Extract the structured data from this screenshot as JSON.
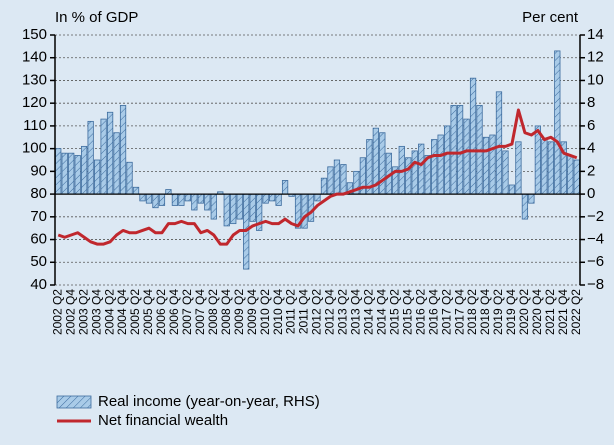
{
  "chart_data": {
    "type": "combo",
    "ylabel": "In % of GDP",
    "y2label": "Per cent",
    "categories": [
      "2002 Q2",
      null,
      "2002 Q4",
      null,
      "2003 Q2",
      null,
      "2003 Q4",
      null,
      "2004 Q2",
      null,
      "2004 Q4",
      null,
      "2005 Q2",
      null,
      "2005 Q4",
      null,
      "2006 Q2",
      null,
      "2006 Q4",
      null,
      "2007 Q2",
      null,
      "2007 Q4",
      null,
      "2008 Q2",
      null,
      "2008 Q4",
      null,
      "2009 Q2",
      null,
      "2009 Q4",
      null,
      "2010 Q2",
      null,
      "2010 Q4",
      null,
      "2011 Q2",
      null,
      "2011 Q4",
      null,
      "2012 Q2",
      null,
      "2012 Q4",
      null,
      "2013 Q2",
      null,
      "2013 Q4",
      null,
      "2014 Q2",
      null,
      "2014 Q4",
      null,
      "2015 Q2",
      null,
      "2015 Q4",
      null,
      "2016 Q2",
      null,
      "2016 Q4",
      null,
      "2017 Q2",
      null,
      "2017 Q4",
      null,
      "2018 Q2",
      null,
      "2018 Q4",
      null,
      "2019 Q2",
      null,
      "2019 Q4",
      null,
      "2020 Q2",
      null,
      "2020 Q4",
      null,
      "2021 Q2",
      null,
      "2021 Q4",
      null,
      "2022 Q2"
    ],
    "series": [
      {
        "name": "Real income (year-on-year, RHS)",
        "type": "bar",
        "axis": "y2",
        "color": "#a9cbe8",
        "edge": "#3d6c9e",
        "values": [
          4,
          3.6,
          3.6,
          3.4,
          4.2,
          6.4,
          3,
          6.6,
          7.2,
          5.4,
          7.8,
          2.8,
          0.6,
          -0.6,
          -0.8,
          -1.2,
          -1,
          0.4,
          -1,
          -1,
          -0.6,
          -1.4,
          -0.8,
          -1.4,
          -2.2,
          0.2,
          -2.8,
          -2.6,
          -2.2,
          -6.6,
          -2.4,
          -3.2,
          -0.8,
          -0.6,
          -1,
          1.2,
          -0.2,
          -3,
          -3,
          -2.4,
          -0.6,
          1.4,
          2.4,
          3,
          2.6,
          1,
          2,
          3.2,
          4.8,
          5.8,
          5.4,
          3.6,
          2.4,
          4.2,
          3.2,
          3.8,
          4.4,
          3.4,
          4.8,
          5.2,
          6,
          7.8,
          7.8,
          6.6,
          10.2,
          7.8,
          5,
          5.2,
          9,
          3.8,
          0.8,
          4.6,
          -2.2,
          -0.8,
          6,
          4.8,
          4.6,
          12.6,
          4.6,
          3.4,
          3
        ]
      },
      {
        "name": "Net financial wealth",
        "type": "line",
        "color": "#c0272d",
        "values": [
          62,
          61,
          62,
          63,
          61,
          59,
          58,
          58,
          59,
          62,
          64,
          63,
          63,
          64,
          65,
          63,
          63,
          67,
          67,
          68,
          67,
          67,
          63,
          64,
          62,
          58,
          58,
          62,
          64,
          64,
          66,
          67,
          68,
          67,
          67,
          69,
          67,
          66,
          70,
          72,
          75,
          77,
          79,
          80,
          80,
          81,
          82,
          83,
          83,
          84,
          86,
          88,
          90,
          90,
          91,
          94,
          93,
          96,
          97,
          97,
          98,
          98,
          98,
          99,
          99,
          99,
          99,
          100,
          101,
          101,
          102,
          117,
          107,
          106,
          108,
          104,
          105,
          103,
          98,
          97,
          96
        ]
      }
    ],
    "ylim": [
      40,
      150
    ],
    "yticks": [
      40,
      50,
      60,
      70,
      80,
      90,
      100,
      110,
      120,
      130,
      140,
      150
    ],
    "y2lim": [
      -8,
      14
    ],
    "y2ticks": [
      {
        "value": -8,
        "label": "−8"
      },
      {
        "value": -6,
        "label": "−6"
      },
      {
        "value": -4,
        "label": "−4"
      },
      {
        "value": -2,
        "label": "−2"
      },
      0,
      2,
      4,
      6,
      8,
      10,
      12,
      14
    ],
    "grid": true
  }
}
